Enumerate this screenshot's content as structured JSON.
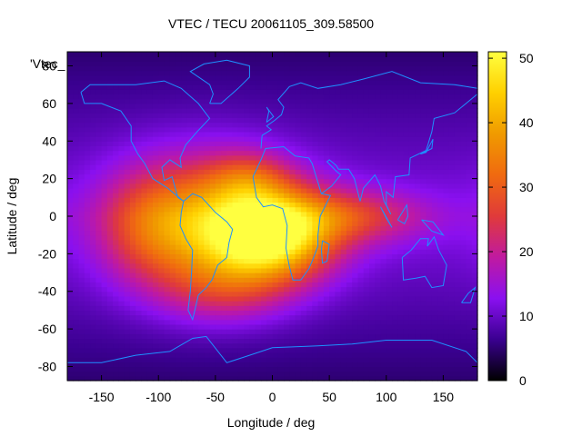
{
  "chart_data": {
    "type": "heatmap",
    "title": "VTEC / TECU 20061105_309.58500",
    "xlabel": "Longitude / deg",
    "ylabel": "Latitude / deg",
    "key_label": "'Vtec_",
    "xlim": [
      -180,
      180
    ],
    "ylim": [
      -87.5,
      87.5
    ],
    "xticks": [
      -150,
      -100,
      -50,
      0,
      50,
      100,
      150
    ],
    "yticks": [
      -80,
      -60,
      -40,
      -20,
      0,
      20,
      40,
      60,
      80
    ],
    "colorbar": {
      "range": [
        0,
        51
      ],
      "ticks": [
        0,
        10,
        20,
        30,
        40,
        50
      ]
    },
    "colormap": [
      "#000000",
      "#3a0090",
      "#8a10f0",
      "#c01aa0",
      "#e03a3a",
      "#f06a10",
      "#f09a00",
      "#ffd000",
      "#ffff40"
    ],
    "coastline_color": "#1e90ff",
    "grid": false,
    "blobs": [
      {
        "lon": 0,
        "lat": -10,
        "sx": 38,
        "sy": 16,
        "amp": 36
      },
      {
        "lon": -55,
        "lat": -5,
        "sx": 50,
        "sy": 25,
        "amp": 25
      },
      {
        "lon": -110,
        "lat": -5,
        "sx": 30,
        "sy": 20,
        "amp": 10
      },
      {
        "lon": -20,
        "lat": 20,
        "sx": 25,
        "sy": 10,
        "amp": 10
      },
      {
        "lon": 70,
        "lat": 0,
        "sx": 45,
        "sy": 10,
        "amp": 13
      },
      {
        "lon": -40,
        "lat": -40,
        "sx": 40,
        "sy": 12,
        "amp": 8
      }
    ],
    "background_level": 12
  }
}
